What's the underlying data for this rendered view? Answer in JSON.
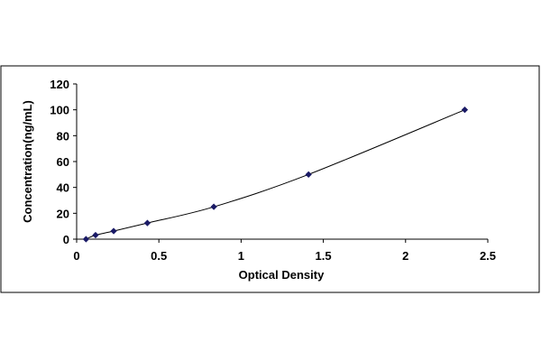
{
  "chart_data": {
    "type": "scatter",
    "title": "",
    "xlabel": "Optical Density",
    "ylabel": "Concentration(ng/mL)",
    "xlim": [
      0,
      2.5
    ],
    "ylim": [
      0,
      120
    ],
    "x_ticks": [
      "0",
      "0.5",
      "1",
      "1.5",
      "2",
      "2.5"
    ],
    "y_ticks": [
      "0",
      "20",
      "40",
      "60",
      "80",
      "100",
      "120"
    ],
    "grid": false,
    "legend": "none",
    "series": [
      {
        "x": [
          0.057,
          0.115,
          0.225,
          0.43,
          0.834,
          1.41,
          2.36
        ],
        "y": [
          0,
          3.125,
          6.25,
          12.5,
          25,
          50,
          100
        ],
        "marker": "diamond",
        "trendline": "smooth"
      }
    ],
    "colors": {
      "marker": "#1a1a66",
      "line": "#000000",
      "axis": "#000000",
      "frame": "#000000"
    }
  }
}
